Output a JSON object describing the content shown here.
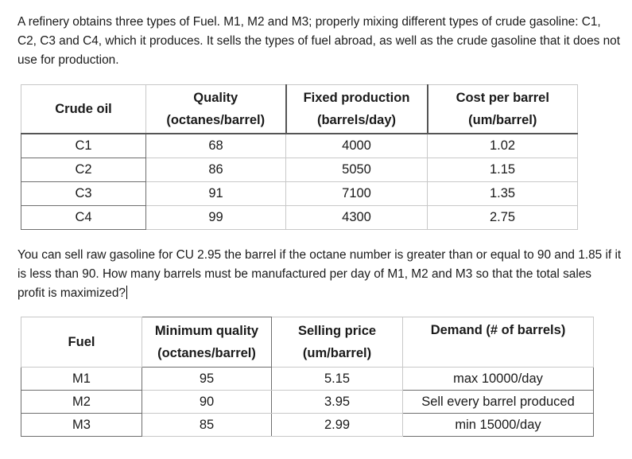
{
  "intro_text": "A refinery obtains three types of Fuel. M1, M2 and M3; properly mixing different types of crude gasoline: C1, C2, C3 and C4, which it produces. It sells the types of fuel abroad, as well as the crude gasoline that it does not use for production.",
  "crude_table": {
    "headers": {
      "crude": "Crude oil",
      "quality_1": "Quality",
      "quality_2": "(octanes/barrel)",
      "fixed_1": "Fixed production",
      "fixed_2": "(barrels/day)",
      "cost_1": "Cost per barrel",
      "cost_2": "(um/barrel)"
    },
    "rows": [
      {
        "crude": "C1",
        "quality": "68",
        "production": "4000",
        "cost": "1.02"
      },
      {
        "crude": "C2",
        "quality": "86",
        "production": "5050",
        "cost": "1.15"
      },
      {
        "crude": "C3",
        "quality": "91",
        "production": "7100",
        "cost": "1.35"
      },
      {
        "crude": "C4",
        "quality": "99",
        "production": "4300",
        "cost": "2.75"
      }
    ]
  },
  "question_text": "You can sell raw gasoline for CU 2.95 the barrel if the octane number is greater than or equal to 90 and 1.85 if it is less than 90. How many barrels must be manufactured per day of M1, M2 and M3 so that the total sales profit is maximized?",
  "fuel_table": {
    "headers": {
      "fuel": "Fuel",
      "minq_1": "Minimum quality",
      "minq_2": "(octanes/barrel)",
      "price_1": "Selling price",
      "price_2": "(um/barrel)",
      "demand": "Demand (# of barrels)"
    },
    "rows": [
      {
        "fuel": "M1",
        "min_quality": "95",
        "price": "5.15",
        "demand": "max 10000/day"
      },
      {
        "fuel": "M2",
        "min_quality": "90",
        "price": "3.95",
        "demand": "Sell every barrel produced"
      },
      {
        "fuel": "M3",
        "min_quality": "85",
        "price": "2.99",
        "demand": "min 15000/day"
      }
    ]
  }
}
